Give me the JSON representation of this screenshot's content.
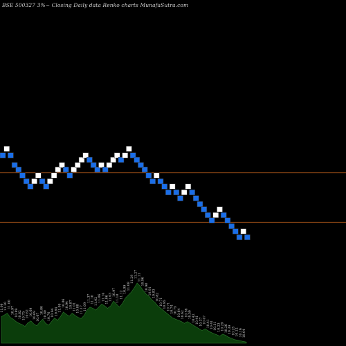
{
  "chart_data": {
    "type": "renko",
    "title": "BSE 500327 3%~   Closing Daily data  Renko  charts MunafaSutra.com",
    "colors": {
      "background": "#000000",
      "up_brick": "#ffffff",
      "down_brick": "#1a6ee8",
      "brick_border": "#3c3c3c",
      "reference_line": "#c8641e",
      "volume_fill": "#0b3d0b",
      "volume_outline": "#2d7a2d",
      "label": "#d8d8d8"
    },
    "reference_lines": [
      10.93,
      10.17
    ],
    "bricks": [
      {
        "dir": "down",
        "value": 11.2
      },
      {
        "dir": "up",
        "value": 11.3
      },
      {
        "dir": "down",
        "value": 11.2
      },
      {
        "dir": "down",
        "value": 11.05
      },
      {
        "dir": "down",
        "value": 10.98
      },
      {
        "dir": "down",
        "value": 10.89
      },
      {
        "dir": "down",
        "value": 10.8
      },
      {
        "dir": "down",
        "value": 10.72
      },
      {
        "dir": "up",
        "value": 10.8
      },
      {
        "dir": "up",
        "value": 10.89
      },
      {
        "dir": "down",
        "value": 10.8
      },
      {
        "dir": "down",
        "value": 10.72
      },
      {
        "dir": "up",
        "value": 10.8
      },
      {
        "dir": "up",
        "value": 10.89
      },
      {
        "dir": "up",
        "value": 10.98
      },
      {
        "dir": "up",
        "value": 11.05
      },
      {
        "dir": "down",
        "value": 10.98
      },
      {
        "dir": "down",
        "value": 10.89
      },
      {
        "dir": "up",
        "value": 10.98
      },
      {
        "dir": "up",
        "value": 11.05
      },
      {
        "dir": "up",
        "value": 11.13
      },
      {
        "dir": "up",
        "value": 11.2
      },
      {
        "dir": "down",
        "value": 11.13
      },
      {
        "dir": "down",
        "value": 11.05
      },
      {
        "dir": "down",
        "value": 10.98
      },
      {
        "dir": "up",
        "value": 11.05
      },
      {
        "dir": "down",
        "value": 10.98
      },
      {
        "dir": "up",
        "value": 11.05
      },
      {
        "dir": "up",
        "value": 11.13
      },
      {
        "dir": "up",
        "value": 11.2
      },
      {
        "dir": "down",
        "value": 11.13
      },
      {
        "dir": "up",
        "value": 11.2
      },
      {
        "dir": "up",
        "value": 11.3
      },
      {
        "dir": "down",
        "value": 11.2
      },
      {
        "dir": "down",
        "value": 11.13
      },
      {
        "dir": "down",
        "value": 11.05
      },
      {
        "dir": "down",
        "value": 10.98
      },
      {
        "dir": "down",
        "value": 10.89
      },
      {
        "dir": "down",
        "value": 10.8
      },
      {
        "dir": "up",
        "value": 10.89
      },
      {
        "dir": "down",
        "value": 10.8
      },
      {
        "dir": "down",
        "value": 10.72
      },
      {
        "dir": "down",
        "value": 10.63
      },
      {
        "dir": "up",
        "value": 10.72
      },
      {
        "dir": "down",
        "value": 10.63
      },
      {
        "dir": "down",
        "value": 10.54
      },
      {
        "dir": "up",
        "value": 10.63
      },
      {
        "dir": "up",
        "value": 10.72
      },
      {
        "dir": "down",
        "value": 10.63
      },
      {
        "dir": "down",
        "value": 10.54
      },
      {
        "dir": "down",
        "value": 10.45
      },
      {
        "dir": "down",
        "value": 10.37
      },
      {
        "dir": "down",
        "value": 10.28
      },
      {
        "dir": "down",
        "value": 10.2
      },
      {
        "dir": "up",
        "value": 10.28
      },
      {
        "dir": "up",
        "value": 10.37
      },
      {
        "dir": "down",
        "value": 10.28
      },
      {
        "dir": "down",
        "value": 10.2
      },
      {
        "dir": "down",
        "value": 10.11
      },
      {
        "dir": "down",
        "value": 10.03
      },
      {
        "dir": "down",
        "value": 9.94
      },
      {
        "dir": "up",
        "value": 10.03
      },
      {
        "dir": "down",
        "value": 9.94
      }
    ],
    "volume_labels": [
      "11.09",
      "11.20",
      "11.00",
      "10.97",
      "10.89",
      "10.82",
      "10.75",
      "10.62",
      "10.69",
      "10.69",
      "10.67",
      "10.80",
      "10.80",
      "10.76",
      "10.94",
      "10.84",
      "11.09",
      "10.86",
      "10.94",
      "10.87",
      "11.01",
      "10.88",
      "11.17",
      "11.09",
      "11.37",
      "11.10",
      "11.02",
      "11.06",
      "11.14",
      "11.06",
      "11.03",
      "10.97",
      "11.18",
      "11.12",
      "10.99",
      "11.08",
      "11.29",
      "11.27",
      "11.11",
      "10.96",
      "10.98",
      "10.91",
      "10.83",
      "10.82",
      "10.71",
      "10.95",
      "10.71",
      "10.74",
      "10.75",
      "10.64",
      "10.62",
      "10.56",
      "10.50",
      "10.42",
      "10.41",
      "10.37",
      "10.47",
      "10.41",
      "10.41",
      "10.31",
      "10.23",
      "10.29",
      "10.26",
      "10.39",
      "10.25",
      "10.12",
      "10.16",
      "10.04"
    ],
    "volume_levels": [
      0.44,
      0.47,
      0.5,
      0.43,
      0.4,
      0.36,
      0.33,
      0.31,
      0.28,
      0.34,
      0.37,
      0.32,
      0.29,
      0.35,
      0.4,
      0.33,
      0.3,
      0.36,
      0.42,
      0.38,
      0.44,
      0.52,
      0.48,
      0.45,
      0.5,
      0.46,
      0.43,
      0.41,
      0.46,
      0.55,
      0.6,
      0.58,
      0.55,
      0.6,
      0.65,
      0.62,
      0.58,
      0.62,
      0.7,
      0.65,
      0.6,
      0.66,
      0.75,
      0.8,
      0.85,
      0.92,
      1.0,
      0.95,
      0.88,
      0.82,
      0.78,
      0.72,
      0.68,
      0.62,
      0.58,
      0.54,
      0.5,
      0.46,
      0.42,
      0.4,
      0.38,
      0.36,
      0.33,
      0.36,
      0.33,
      0.3,
      0.27,
      0.24,
      0.21,
      0.24,
      0.21,
      0.18,
      0.16,
      0.14,
      0.12,
      0.15,
      0.13,
      0.1,
      0.08,
      0.06,
      0.05,
      0.04,
      0.03,
      0.02
    ]
  }
}
